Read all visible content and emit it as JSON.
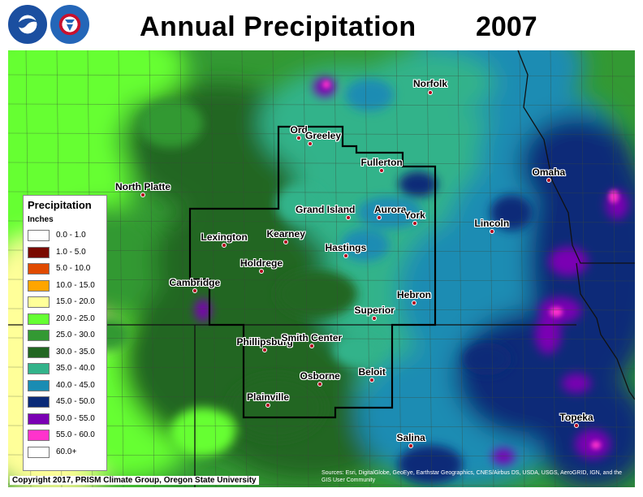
{
  "header": {
    "title": "Annual Precipitation",
    "year": "2007",
    "logos": [
      {
        "name": "noaa-logo",
        "text": "NOAA",
        "color": "#1b4fa0"
      },
      {
        "name": "nws-logo",
        "text": "NATIONAL WEATHER SERVICE",
        "color": "#2466b8"
      }
    ]
  },
  "legend": {
    "title": "Precipitation",
    "units": "Inches",
    "items": [
      {
        "label": "0.0 - 1.0",
        "color": "#ffffff"
      },
      {
        "label": "1.0 - 5.0",
        "color": "#7a0a00"
      },
      {
        "label": "5.0 - 10.0",
        "color": "#e04a00"
      },
      {
        "label": "10.0 - 15.0",
        "color": "#ffa500"
      },
      {
        "label": "15.0 - 20.0",
        "color": "#ffff99"
      },
      {
        "label": "20.0 - 25.0",
        "color": "#66ff33"
      },
      {
        "label": "25.0 - 30.0",
        "color": "#339933"
      },
      {
        "label": "30.0 - 35.0",
        "color": "#226622"
      },
      {
        "label": "35.0 - 40.0",
        "color": "#33b38a"
      },
      {
        "label": "40.0 - 45.0",
        "color": "#1a8cb3"
      },
      {
        "label": "45.0 - 50.0",
        "color": "#0a2a78"
      },
      {
        "label": "50.0 - 55.0",
        "color": "#7a00b3"
      },
      {
        "label": "55.0 - 60.0",
        "color": "#ff33cc"
      },
      {
        "label": "60.0+",
        "color": "#ffffff"
      }
    ]
  },
  "cities": [
    {
      "name": "Norfolk"
    },
    {
      "name": "Ord"
    },
    {
      "name": "Greeley"
    },
    {
      "name": "Fullerton"
    },
    {
      "name": "Omaha"
    },
    {
      "name": "North Platte"
    },
    {
      "name": "Grand Island"
    },
    {
      "name": "Aurora"
    },
    {
      "name": "York"
    },
    {
      "name": "Lincoln"
    },
    {
      "name": "Lexington"
    },
    {
      "name": "Kearney"
    },
    {
      "name": "Hastings"
    },
    {
      "name": "Holdrege"
    },
    {
      "name": "Cambridge"
    },
    {
      "name": "Hebron"
    },
    {
      "name": "Superior"
    },
    {
      "name": "Phillipsburg"
    },
    {
      "name": "Smith Center"
    },
    {
      "name": "Osborne"
    },
    {
      "name": "Beloit"
    },
    {
      "name": "Plainville"
    },
    {
      "name": "Topeka"
    },
    {
      "name": "Salina"
    }
  ],
  "footer": {
    "copyright": "Copyright 2017, PRISM Climate Group, Oregon State University",
    "sources": "Sources: Esri, DigitalGlobe, GeoEye, Earthstar Geographics, CNES/Airbus DS, USDA, USGS, AeroGRID, IGN, and the GIS User Community"
  }
}
